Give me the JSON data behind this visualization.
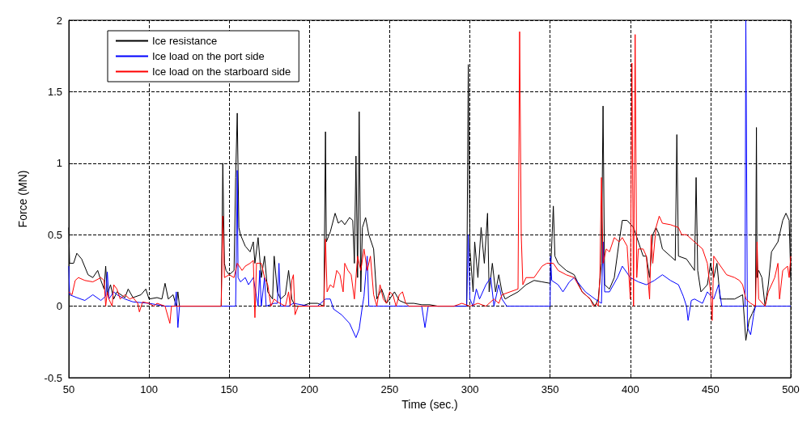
{
  "chart_data": {
    "type": "line",
    "xlabel": "Time (sec.)",
    "ylabel": "Force (MN)",
    "xlim": [
      50,
      500
    ],
    "ylim": [
      -0.5,
      2
    ],
    "xticks": [
      50,
      100,
      150,
      200,
      250,
      300,
      350,
      400,
      450,
      500
    ],
    "yticks": [
      -0.5,
      0,
      0.5,
      1,
      1.5,
      2
    ],
    "grid": true,
    "legend": "top left",
    "marker": "none",
    "line_style": "solid",
    "series": [
      {
        "name": "Ice resistance",
        "color": "#000000",
        "x": [
          50,
          50.5,
          53,
          55,
          58,
          62,
          65,
          68,
          70,
          72,
          73,
          74,
          76,
          78,
          80,
          85,
          87,
          90,
          95,
          98,
          100,
          105,
          108,
          110,
          112,
          115,
          117,
          118,
          119,
          120,
          145,
          146,
          147,
          148,
          150,
          153,
          154,
          155,
          156,
          157,
          160,
          163,
          165,
          166,
          168,
          170,
          172,
          174,
          177,
          178,
          180,
          182,
          185,
          187,
          189,
          191,
          195,
          200,
          205,
          209,
          210,
          210.5,
          213,
          216,
          218,
          220,
          222,
          225,
          227,
          228,
          229,
          230,
          231,
          232,
          233,
          235,
          237,
          240,
          242,
          245,
          248,
          250,
          253,
          256,
          260,
          265,
          270,
          275,
          280,
          290,
          298,
          299,
          300,
          302,
          303,
          305,
          307,
          309,
          311,
          312,
          314,
          316,
          318,
          320,
          322,
          325,
          330,
          335,
          340,
          345,
          350,
          352,
          353,
          355,
          360,
          365,
          370,
          375,
          378,
          380,
          382,
          383,
          384,
          387,
          390,
          393,
          395,
          398,
          402,
          405,
          408,
          410,
          412,
          414,
          416,
          418,
          420,
          425,
          428,
          429,
          430,
          435,
          440,
          441,
          442,
          444,
          448,
          450,
          452,
          454,
          456,
          460,
          465,
          470,
          472,
          474,
          476,
          478,
          478.6,
          479,
          480,
          482,
          484,
          486,
          488,
          492,
          495,
          497,
          499,
          500
        ],
        "values": [
          0.55,
          0.3,
          0.3,
          0.37,
          0.33,
          0.22,
          0.2,
          0.25,
          0.18,
          0.12,
          0.28,
          0.08,
          0.15,
          0.05,
          0.1,
          0.06,
          0.12,
          0.06,
          0.08,
          0.12,
          0.05,
          0.06,
          0.05,
          0.16,
          0.05,
          0.08,
          0,
          0.1,
          0,
          0,
          0,
          1,
          0.3,
          0.25,
          0.22,
          0.25,
          0.9,
          1.35,
          0.55,
          0.5,
          0.42,
          0.38,
          0.45,
          0.3,
          0.48,
          0.2,
          0.35,
          0.1,
          0.05,
          0.35,
          0.1,
          0.05,
          0.08,
          0.25,
          0.05,
          0,
          0,
          0.02,
          0.02,
          0,
          1.22,
          0.45,
          0.52,
          0.65,
          0.58,
          0.6,
          0.57,
          0.62,
          0.6,
          0.3,
          1.05,
          0.2,
          1.36,
          0.1,
          0.55,
          0.62,
          0.5,
          0.4,
          0.05,
          0.12,
          0.02,
          0.05,
          0.1,
          0.04,
          0.02,
          0.02,
          0.01,
          0.01,
          0,
          0,
          0,
          1.69,
          0.4,
          0.1,
          0.45,
          0.2,
          0.55,
          0.3,
          0.65,
          0.1,
          0.3,
          0.1,
          0.22,
          0.1,
          0.05,
          0.07,
          0.1,
          0.15,
          0.18,
          0.17,
          0.16,
          0.7,
          0.35,
          0.3,
          0.25,
          0.22,
          0.1,
          0.05,
          0,
          0.05,
          0.3,
          1.4,
          0.15,
          0.12,
          0.2,
          0.45,
          0.6,
          0.6,
          0.55,
          0.45,
          0.35,
          0.35,
          0.2,
          0.5,
          0.55,
          0.5,
          0.4,
          0.35,
          0.32,
          1.2,
          0.35,
          0.33,
          0.25,
          0.9,
          0.25,
          0.1,
          0.15,
          0.3,
          0.2,
          0.3,
          0.05,
          0.05,
          0.05,
          0.08,
          -0.24,
          -0.1,
          -0.05,
          0,
          1.25,
          0.2,
          0.25,
          0.2,
          0,
          0.15,
          0.38,
          0.45,
          0.6,
          0.65,
          0.6,
          0.2
        ]
      },
      {
        "name": "Ice load on the port side",
        "color": "#0000ff",
        "x": [
          50,
          50.5,
          55,
          60,
          65,
          70,
          73,
          74,
          75,
          78,
          80,
          85,
          90,
          100,
          110,
          116,
          117,
          118,
          119,
          154,
          155,
          155.5,
          157,
          160,
          162,
          165,
          168,
          169,
          170,
          172,
          173,
          178,
          180,
          181,
          182,
          187,
          190,
          200,
          205,
          210,
          213,
          215,
          220,
          225,
          229,
          231,
          233,
          234,
          236,
          237,
          240,
          260,
          270,
          272,
          274,
          280,
          298,
          299,
          300,
          302,
          304,
          306,
          310,
          313,
          315,
          318,
          320,
          323,
          350,
          350.3,
          351,
          355,
          358,
          362,
          365,
          372,
          378,
          382,
          383,
          384,
          387,
          392,
          395,
          400,
          405,
          410,
          415,
          420,
          425,
          430,
          433,
          435,
          436,
          438,
          440,
          445,
          448,
          452,
          455,
          457,
          470,
          471.5,
          472,
          473,
          475,
          477,
          478,
          500
        ],
        "values": [
          0.28,
          0.08,
          0.06,
          0.04,
          0.08,
          0.04,
          0.07,
          0.24,
          0.05,
          0.1,
          0.08,
          0.05,
          0.03,
          0.02,
          0,
          0,
          0.1,
          -0.15,
          0,
          0,
          0.95,
          0.2,
          0.17,
          0.2,
          0.15,
          0.2,
          0,
          0.25,
          0,
          0.2,
          0,
          0.02,
          0.02,
          0.3,
          0,
          0,
          0.02,
          0,
          0,
          0.05,
          0.05,
          -0.02,
          -0.06,
          -0.12,
          -0.22,
          -0.16,
          0,
          0.07,
          0.35,
          0,
          0,
          0,
          0,
          -0.15,
          0,
          0,
          0,
          0.5,
          0.05,
          0,
          0.12,
          0.05,
          0.15,
          0.2,
          0,
          0.15,
          0.05,
          0,
          0,
          0.35,
          0.18,
          0.15,
          0.1,
          0.17,
          0.2,
          0.1,
          0.05,
          0.02,
          0.45,
          0.1,
          0.1,
          0.2,
          0.28,
          0.2,
          0.17,
          0.15,
          0.18,
          0.22,
          0.18,
          0.15,
          0.07,
          0,
          -0.1,
          0.04,
          0.05,
          0.02,
          0.1,
          0.05,
          0.15,
          0,
          0,
          0,
          2,
          -0.15,
          -0.2,
          -0.05,
          0,
          0
        ]
      },
      {
        "name": "Ice load on the starboard side",
        "color": "#ff0000",
        "x": [
          50,
          52,
          54,
          56,
          60,
          65,
          70,
          72,
          73,
          74,
          75,
          77,
          78,
          80,
          82,
          85,
          88,
          90,
          93,
          94,
          96,
          100,
          103,
          105,
          110,
          113,
          114,
          120,
          145,
          146,
          147,
          150,
          153,
          155,
          158,
          160,
          163,
          165,
          166,
          167,
          170,
          172,
          174,
          176,
          178,
          180,
          185,
          187,
          188,
          189,
          190,
          191,
          193,
          209,
          210,
          211,
          213,
          215,
          217,
          219,
          221,
          222,
          224,
          226,
          228,
          230,
          232,
          234,
          236,
          238,
          240,
          242,
          244,
          246,
          248,
          250,
          252,
          254,
          256,
          258,
          260,
          262,
          270,
          290,
          295,
          300,
          305,
          310,
          315,
          318,
          320,
          325,
          330,
          331,
          332,
          333,
          335,
          340,
          345,
          348,
          352,
          355,
          360,
          365,
          370,
          375,
          377,
          379,
          380,
          381,
          382,
          383,
          385,
          387,
          390,
          393,
          395,
          398,
          400,
          401,
          402,
          403,
          404,
          405,
          408,
          410,
          412,
          413,
          414,
          416,
          418,
          420,
          425,
          430,
          432,
          435,
          440,
          445,
          448,
          450,
          451,
          452,
          455,
          460,
          465,
          468,
          470,
          472,
          475,
          478,
          479,
          480,
          484,
          486,
          490,
          492,
          493,
          495,
          498,
          499,
          500
        ],
        "values": [
          0.1,
          0.08,
          0.18,
          0.2,
          0.18,
          0.17,
          0.2,
          0.18,
          0,
          0.1,
          0.05,
          0,
          0.15,
          0.12,
          0.05,
          0.08,
          0.05,
          0.06,
          0.02,
          -0.04,
          0.03,
          0.02,
          0,
          0.02,
          0,
          -0.12,
          0,
          0,
          0,
          0.63,
          0.2,
          0.22,
          0.2,
          0.3,
          0.25,
          0.28,
          0.3,
          0.32,
          -0.08,
          0.3,
          0.3,
          0.2,
          0.15,
          0,
          0.05,
          0.03,
          0,
          0.1,
          0,
          0.18,
          0.22,
          -0.06,
          0,
          0,
          0.47,
          0.1,
          0.15,
          0.13,
          0.25,
          0.22,
          0.1,
          0.3,
          0.25,
          0.22,
          0.05,
          0.35,
          0.25,
          0.4,
          0.25,
          0.35,
          0.08,
          0,
          0.15,
          0.05,
          0.02,
          0.1,
          0.08,
          0,
          0.08,
          0.1,
          0.02,
          0,
          0,
          0,
          0.02,
          0,
          0.02,
          0,
          0.05,
          0.02,
          0.08,
          0.1,
          0.12,
          1.92,
          0.5,
          0.15,
          0.2,
          0.2,
          0.28,
          0.3,
          0.3,
          0.25,
          0.22,
          0.2,
          0.1,
          0.05,
          0,
          0.02,
          0,
          0.2,
          0.9,
          0.3,
          0.4,
          0.38,
          0.48,
          0.45,
          0.48,
          0.42,
          0.05,
          1.7,
          0,
          1.9,
          0.2,
          0.4,
          0.4,
          0.35,
          0.05,
          0.5,
          0.3,
          0.55,
          0.63,
          0.58,
          0.57,
          0.55,
          0.5,
          0.5,
          0.45,
          0.4,
          0.3,
          0.1,
          -0.1,
          0.35,
          0.3,
          0.22,
          0.2,
          0.18,
          0.15,
          0.05,
          0.02,
          0,
          0.45,
          0.05,
          0,
          0.1,
          0.2,
          0.3,
          0.05,
          0.25,
          0.28,
          0.2,
          0.35
        ]
      }
    ]
  }
}
